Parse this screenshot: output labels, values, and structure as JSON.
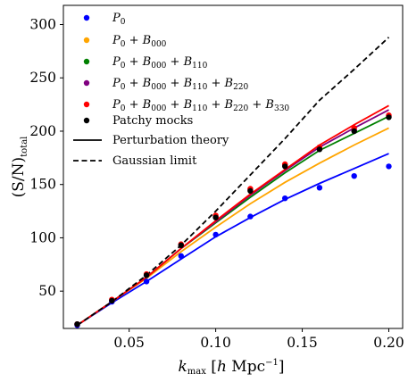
{
  "chart_data": {
    "type": "line",
    "xlabel": "k_max [h Mpc^-1]",
    "ylabel": "(S/N)_total",
    "xlim": [
      0.012,
      0.208
    ],
    "ylim": [
      15,
      318
    ],
    "x_ticks": [
      "0.05",
      "0.10",
      "0.15",
      "0.20"
    ],
    "x_tick_values": [
      0.05,
      0.1,
      0.15,
      0.2
    ],
    "y_ticks": [
      "50",
      "100",
      "150",
      "200",
      "250",
      "300"
    ],
    "y_tick_values": [
      50,
      100,
      150,
      200,
      250,
      300
    ],
    "grid": false,
    "legend_position": "top-left",
    "legend": [
      {
        "key": "P0",
        "label": "P_0",
        "kind": "dot",
        "color": "#0000ff"
      },
      {
        "key": "B000",
        "label": "P_0 + B_000",
        "kind": "dot",
        "color": "#ffa500"
      },
      {
        "key": "B110",
        "label": "P_0 + B_000 + B_110",
        "kind": "dot",
        "color": "#008000"
      },
      {
        "key": "B220",
        "label": "P_0 + B_000 + B_110 + B_220",
        "kind": "dot",
        "color": "#800080"
      },
      {
        "key": "B330",
        "label": "P_0 + B_000 + B_110 + B_220 + B_330",
        "kind": "dot",
        "color": "#ff0000"
      },
      {
        "key": "mocks",
        "label": "Patchy mocks",
        "kind": "dot",
        "color": "#000000"
      },
      {
        "key": "pt",
        "label": "Perturbation theory",
        "kind": "solid",
        "color": "#000000"
      },
      {
        "key": "gauss",
        "label": "Gaussian limit",
        "kind": "dashed",
        "color": "#000000"
      }
    ],
    "x": [
      0.02,
      0.04,
      0.06,
      0.08,
      0.1,
      0.12,
      0.14,
      0.16,
      0.18,
      0.2
    ],
    "series": [
      {
        "name": "P_0",
        "color": "#0000ff",
        "style": "solid",
        "values": [
          18,
          39,
          59,
          80,
          101,
          119,
          136,
          151,
          165,
          179
        ]
      },
      {
        "name": "P_0 + B_000",
        "color": "#ffa500",
        "style": "solid",
        "values": [
          18,
          40,
          62,
          87,
          110,
          132,
          152,
          170,
          187,
          203
        ]
      },
      {
        "name": "P_0 + B_000 + B_110",
        "color": "#008000",
        "style": "solid",
        "values": [
          18,
          40,
          63,
          90,
          114,
          138,
          161,
          182,
          198,
          214
        ]
      },
      {
        "name": "P_0 + B_000 + B_110 + B_220",
        "color": "#800080",
        "style": "solid",
        "values": [
          18,
          40,
          63,
          90,
          115,
          140,
          163,
          185,
          203,
          220
        ]
      },
      {
        "name": "P_0 + B_000 + B_110 + B_220 + B_330",
        "color": "#ff0000",
        "style": "solid",
        "values": [
          18,
          40,
          63,
          90,
          116,
          141,
          164,
          187,
          206,
          224
        ]
      },
      {
        "name": "Gaussian limit",
        "color": "#000000",
        "style": "dashed",
        "values": [
          18,
          40,
          65,
          93,
          125,
          159,
          193,
          229,
          258,
          288
        ]
      }
    ],
    "points": [
      {
        "name": "P_0",
        "color": "#0000ff",
        "values": [
          18,
          40,
          59,
          83,
          103,
          120,
          137,
          147,
          158,
          167
        ]
      },
      {
        "name": "P_0 + B_000 + B_110 + B_220",
        "color": "#800080",
        "values": [
          19,
          41,
          65,
          93,
          120,
          145,
          168,
          184,
          201,
          214
        ]
      },
      {
        "name": "P_0 + B_000 + B_110 + B_220 + B_330",
        "color": "#ff0000",
        "values": [
          19,
          42,
          66,
          94,
          121,
          146,
          169,
          185,
          203,
          215
        ]
      },
      {
        "name": "Patchy mocks",
        "color": "#000000",
        "values": [
          19,
          41,
          65,
          93,
          119,
          144,
          167,
          183,
          200,
          213
        ]
      }
    ]
  }
}
